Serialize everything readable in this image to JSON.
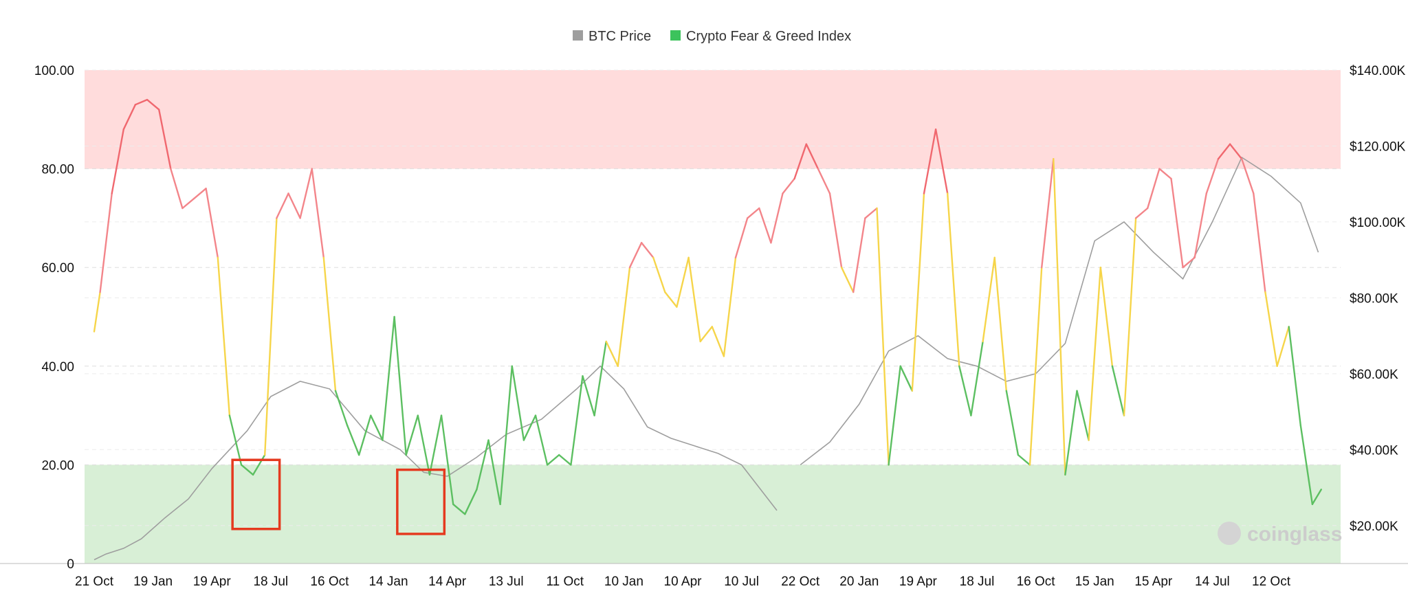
{
  "chart_data": {
    "type": "line",
    "legend": {
      "placement": "top-center",
      "items": [
        {
          "label": "BTC Price",
          "color": "#9e9e9e"
        },
        {
          "label": "Crypto Fear & Greed Index",
          "color": "#3cc35c"
        }
      ]
    },
    "x_tick_labels": [
      "21 Oct",
      "19 Jan",
      "19 Apr",
      "18 Jul",
      "16 Oct",
      "14 Jan",
      "14 Apr",
      "13 Jul",
      "11 Oct",
      "10 Jan",
      "10 Apr",
      "10 Jul",
      "22 Oct",
      "20 Jan",
      "19 Apr",
      "18 Jul",
      "16 Oct",
      "15 Jan",
      "15 Apr",
      "14 Jul",
      "12 Oct"
    ],
    "y_left": {
      "range": [
        0,
        100
      ],
      "tick_values": [
        0,
        20,
        40,
        60,
        80,
        100
      ],
      "tick_labels": [
        "0",
        "20.00",
        "40.00",
        "60.00",
        "80.00",
        "100.00"
      ]
    },
    "y_right": {
      "range": [
        10000,
        140000
      ],
      "tick_values": [
        20000,
        40000,
        60000,
        80000,
        100000,
        120000,
        140000
      ],
      "tick_labels": [
        "$20.00K",
        "$40.00K",
        "$60.00K",
        "$80.00K",
        "$100.00K",
        "$120.00K",
        "$140.00K"
      ]
    },
    "zones": [
      {
        "from": 80,
        "to": 100,
        "color": "#ffdcdc"
      },
      {
        "from": 0,
        "to": 20,
        "color": "#d8efd6"
      }
    ],
    "index_colors": {
      "fear": "#5cbf61",
      "neutral": "#f6d54a",
      "greed": "#f3858a",
      "extreme_greed": "#f0686f"
    },
    "series": [
      {
        "name": "BTC Price",
        "axis": "right",
        "color": "#9e9e9e",
        "x": [
          0,
          0.2,
          0.5,
          0.8,
          1.2,
          1.6,
          2,
          2.6,
          3.0,
          3.5,
          4.0,
          4.6,
          5.2,
          5.6,
          6.0,
          6.5,
          7.0,
          7.6,
          8.2,
          8.6,
          9.0,
          9.4,
          9.8,
          10.2,
          10.6,
          11.0,
          11.6,
          12.0,
          12.6,
          13.0,
          13.6,
          14.0,
          14.6,
          15.0,
          15.6,
          16.0,
          16.6,
          17.0,
          17.6,
          18.0,
          18.6,
          19.0,
          19.6,
          20.0,
          20.4,
          20.8
        ],
        "y": [
          11000,
          12500,
          14000,
          16500,
          22000,
          27000,
          35000,
          45000,
          54000,
          58000,
          56000,
          45000,
          40000,
          34000,
          33000,
          38000,
          44000,
          48000,
          56000,
          62000,
          56000,
          46000,
          43000,
          41000,
          39000,
          36000,
          24000,
          20000,
          19500,
          20000,
          17500,
          16500,
          17000,
          18000,
          20000,
          26000,
          27000,
          29000,
          28500,
          31000,
          34000,
          38000,
          39000,
          42000,
          44000,
          46000
        ],
        "x2": [
          12.0,
          12.5,
          13.0,
          13.5,
          14.0,
          14.5,
          15.0,
          15.5,
          16.0,
          16.5,
          17.0,
          17.5,
          18.0,
          18.5,
          19.0,
          19.5,
          20.0,
          20.5,
          20.8
        ],
        "y2": [
          36000,
          42000,
          52000,
          66000,
          70000,
          64000,
          62000,
          58000,
          60000,
          68000,
          95000,
          100000,
          92000,
          85000,
          100000,
          117000,
          112000,
          105000,
          92000
        ]
      },
      {
        "name": "Crypto Fear & Greed Index",
        "axis": "left",
        "x": [
          0,
          0.1,
          0.3,
          0.5,
          0.7,
          0.9,
          1.1,
          1.3,
          1.5,
          1.7,
          1.9,
          2.1,
          2.3,
          2.5,
          2.7,
          2.9,
          3.1,
          3.3,
          3.5,
          3.7,
          3.9,
          4.1,
          4.3,
          4.5,
          4.7,
          4.9,
          5.1,
          5.3,
          5.5,
          5.7,
          5.9,
          6.1,
          6.3,
          6.5,
          6.7,
          6.9,
          7.1,
          7.3,
          7.5,
          7.7,
          7.9,
          8.1,
          8.3,
          8.5,
          8.7,
          8.9,
          9.1,
          9.3,
          9.5,
          9.7,
          9.9,
          10.1,
          10.3,
          10.5,
          10.7,
          10.9,
          11.1,
          11.3,
          11.5,
          11.7,
          11.9,
          12.1,
          12.3,
          12.5,
          12.7,
          12.9,
          13.1,
          13.3,
          13.5,
          13.7,
          13.9,
          14.1,
          14.3,
          14.5,
          14.7,
          14.9,
          15.1,
          15.3,
          15.5,
          15.7,
          15.9,
          16.1,
          16.3,
          16.5,
          16.7,
          16.9,
          17.1,
          17.3,
          17.5,
          17.7,
          17.9,
          18.1,
          18.3,
          18.5,
          18.7,
          18.9,
          19.1,
          19.3,
          19.5,
          19.7,
          19.9,
          20.1,
          20.3,
          20.5,
          20.7,
          20.85
        ],
        "y": [
          47,
          55,
          75,
          88,
          93,
          94,
          92,
          80,
          72,
          74,
          76,
          62,
          30,
          20,
          18,
          22,
          70,
          75,
          70,
          80,
          62,
          35,
          28,
          22,
          30,
          25,
          50,
          22,
          30,
          18,
          30,
          12,
          10,
          15,
          25,
          12,
          40,
          25,
          30,
          20,
          22,
          20,
          38,
          30,
          45,
          40,
          60,
          65,
          62,
          55,
          52,
          62,
          45,
          48,
          42,
          62,
          70,
          72,
          65,
          75,
          78,
          85,
          80,
          75,
          60,
          55,
          70,
          72,
          20,
          40,
          35,
          75,
          88,
          75,
          40,
          30,
          45,
          62,
          35,
          22,
          20,
          60,
          82,
          18,
          35,
          25,
          60,
          40,
          30,
          70,
          72,
          80,
          78,
          60,
          62,
          75,
          82,
          85,
          82,
          75,
          55,
          40,
          48,
          28,
          12,
          15
        ]
      }
    ],
    "annotations": [
      {
        "type": "rect",
        "x0": 2.35,
        "x1": 3.15,
        "y0": 7,
        "y1": 21,
        "color": "#e53a1f"
      },
      {
        "type": "rect",
        "x0": 5.15,
        "x1": 5.95,
        "y0": 6,
        "y1": 19,
        "color": "#e53a1f"
      }
    ],
    "watermark": "coinglass"
  }
}
